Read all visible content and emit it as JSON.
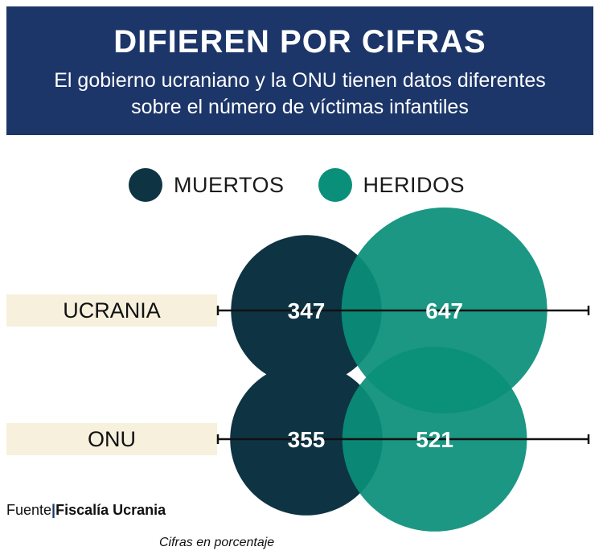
{
  "header": {
    "title": "DIFIEREN POR CIFRAS",
    "subtitle_line1": "El gobierno ucraniano y la ONU tienen datos diferentes",
    "subtitle_line2": "sobre el número de víctimas infantiles"
  },
  "legend": [
    {
      "label": "MUERTOS",
      "color": "#0e3443"
    },
    {
      "label": "HERIDOS",
      "color": "#0a8f7a"
    }
  ],
  "chart_data": {
    "type": "bubble",
    "categories": [
      "UCRANIA",
      "ONU"
    ],
    "series": [
      {
        "name": "MUERTOS",
        "color": "#0e3443",
        "values": [
          347,
          355
        ]
      },
      {
        "name": "HERIDOS",
        "color": "#0a8f7a",
        "values": [
          647,
          521
        ]
      }
    ],
    "title": "DIFIEREN POR CIFRAS",
    "note": "Cifras en porcentaje"
  },
  "source": {
    "label": "Fuente",
    "separator": "|",
    "name": "Fiscalía Ucrania"
  },
  "note": "Cifras en porcentaje"
}
